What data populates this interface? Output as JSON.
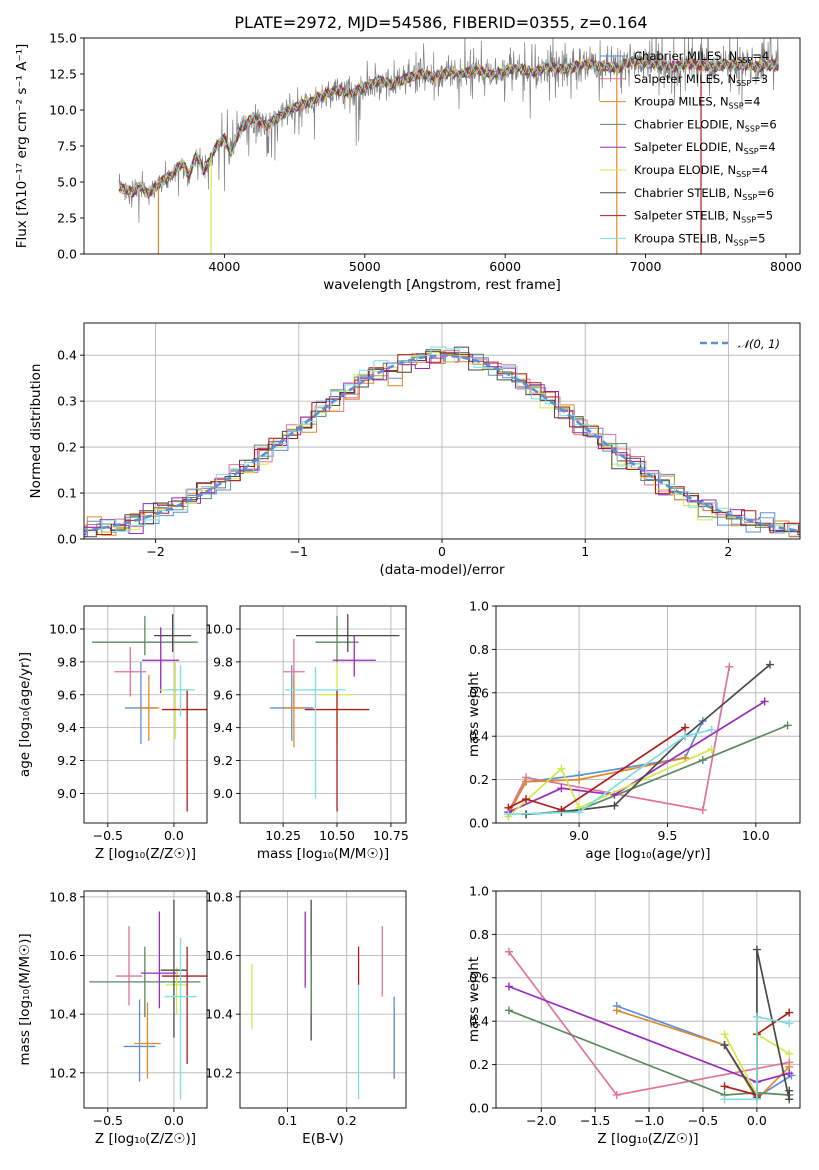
{
  "chart_data": [
    {
      "id": "spectrum",
      "type": "line",
      "title": "PLATE=2972, MJD=54586, FIBERID=0355, z=0.164",
      "xlabel": "wavelength [Angstrom, rest frame]",
      "ylabel": "Flux [fλ10⁻¹⁷ erg cm⁻² s⁻¹ A⁻¹]",
      "xlim": [
        3000,
        8100
      ],
      "ylim": [
        0,
        15
      ],
      "xticks": [
        4000,
        5000,
        6000,
        7000,
        8000
      ],
      "yticks": [
        0.0,
        2.5,
        5.0,
        7.5,
        10.0,
        12.5,
        15.0
      ],
      "ytick_labels": [
        "0.0",
        "2.5",
        "5.0",
        "7.5",
        "10.0",
        "12.5",
        "15.0"
      ],
      "legend_loc": "upper right",
      "data_series": {
        "name": "",
        "color": "#808080",
        "x": [
          3250,
          3300,
          3350,
          3400,
          3450,
          3500,
          3550,
          3600,
          3650,
          3700,
          3750,
          3800,
          3850,
          3900,
          3950,
          4000,
          4050,
          4100,
          4150,
          4200,
          4300,
          4400,
          4500,
          4600,
          4700,
          4800,
          4900,
          5000,
          5100,
          5200,
          5300,
          5400,
          5500,
          5600,
          5700,
          5800,
          5900,
          6000,
          6100,
          6200,
          6300,
          6400,
          6500,
          6600,
          6700,
          6800,
          6900,
          7000,
          7100,
          7200,
          7300,
          7400,
          7500,
          7600,
          7700,
          7800,
          7900
        ],
        "y": [
          4.6,
          4.5,
          4.3,
          4.7,
          4.2,
          4.6,
          5.0,
          5.3,
          5.8,
          6.3,
          5.5,
          6.9,
          5.8,
          6.6,
          7.6,
          8.1,
          7.0,
          8.4,
          9.0,
          9.5,
          8.9,
          9.6,
          10.2,
          10.6,
          11.0,
          11.4,
          11.1,
          11.6,
          12.0,
          11.8,
          12.2,
          12.5,
          12.3,
          12.6,
          12.5,
          12.8,
          12.4,
          12.7,
          12.9,
          12.6,
          13.0,
          12.8,
          13.0,
          13.2,
          13.0,
          12.9,
          13.4,
          13.3,
          13.1,
          13.0,
          13.2,
          13.1,
          13.0,
          13.2,
          13.1,
          13.0,
          13.1
        ]
      },
      "series": [
        {
          "name": "Chabrier MILES, N_SSP=4",
          "color": "#5b8fd8"
        },
        {
          "name": "Salpeter MILES, N_SSP=3",
          "color": "#e0739e"
        },
        {
          "name": "Kroupa MILES, N_SSP=4",
          "color": "#e08a2a"
        },
        {
          "name": "Chabrier ELODIE, N_SSP=6",
          "color": "#5a8a5e"
        },
        {
          "name": "Salpeter ELODIE, N_SSP=4",
          "color": "#9a2bbd"
        },
        {
          "name": "Kroupa ELODIE, N_SSP=4",
          "color": "#d4e84a"
        },
        {
          "name": "Chabrier STELIB, N_SSP=6",
          "color": "#4a4a4a"
        },
        {
          "name": "Salpeter STELIB, N_SSP=5",
          "color": "#b01c1c"
        },
        {
          "name": "Kroupa STELIB, N_SSP=5",
          "color": "#7fdde0"
        }
      ]
    },
    {
      "id": "residuals",
      "type": "line",
      "xlabel": "(data-model)/error",
      "ylabel": "Normed distribution",
      "xlim": [
        -2.5,
        2.5
      ],
      "ylim": [
        0,
        0.47
      ],
      "xticks": [
        -2,
        -1,
        0,
        1,
        2
      ],
      "xtick_labels": [
        "−2",
        "−1",
        "0",
        "1",
        "2"
      ],
      "yticks": [
        0.0,
        0.1,
        0.2,
        0.3,
        0.4
      ],
      "ytick_labels": [
        "0.0",
        "0.1",
        "0.2",
        "0.3",
        "0.4"
      ],
      "grid": true,
      "legend": "𝒩(0, 1)",
      "legend_loc": "upper right",
      "series": [
        {
          "name": "𝒩(0, 1)",
          "color": "#5b8fd8",
          "style": "dashed",
          "function": "normal_pdf",
          "mean": 0,
          "sigma": 1
        }
      ]
    },
    {
      "id": "age_vs_Z",
      "type": "scatter",
      "xlabel": "Z [log₁₀(Z/Z☉)]",
      "ylabel": "age  [log₁₀(age/yr)]",
      "xlim": [
        -0.68,
        0.25
      ],
      "ylim": [
        8.82,
        10.14
      ],
      "xticks": [
        -0.5,
        0.0
      ],
      "xtick_labels": [
        "−0.5",
        "0.0"
      ],
      "yticks": [
        9.0,
        9.2,
        9.4,
        9.6,
        9.8,
        10.0
      ],
      "ytick_labels": [
        "9.0",
        "9.2",
        "9.4",
        "9.6",
        "9.8",
        "10.0"
      ],
      "grid": true,
      "points": [
        {
          "color": "#5b8fd8",
          "x": -0.25,
          "y": 9.52,
          "xerr": 0.12,
          "yerr": [
            0.22,
            0.28
          ]
        },
        {
          "color": "#e0739e",
          "x": -0.33,
          "y": 9.74,
          "xerr": 0.12,
          "yerr": [
            0.15,
            0.15
          ]
        },
        {
          "color": "#e08a2a",
          "x": -0.19,
          "y": 9.52,
          "xerr": 0.08,
          "yerr": [
            0.2,
            0.2
          ]
        },
        {
          "color": "#5a8a5e",
          "x": -0.22,
          "y": 9.92,
          "xerr": 0.4,
          "yerr": [
            0.08,
            0.16
          ]
        },
        {
          "color": "#9a2bbd",
          "x": -0.1,
          "y": 9.81,
          "xerr": 0.14,
          "yerr": [
            0.2,
            0.2
          ]
        },
        {
          "color": "#d4e84a",
          "x": 0.01,
          "y": 9.63,
          "xerr": 0.12,
          "yerr": [
            0.3,
            0.17
          ]
        },
        {
          "color": "#4a4a4a",
          "x": -0.01,
          "y": 9.96,
          "xerr": 0.14,
          "yerr": [
            0.1,
            0.13
          ]
        },
        {
          "color": "#b01c1c",
          "x": 0.1,
          "y": 9.51,
          "xerr": 0.19,
          "yerr": [
            0.62,
            0.12
          ]
        },
        {
          "color": "#7fdde0",
          "x": 0.05,
          "y": 9.63,
          "xerr": 0.11,
          "yerr": [
            0.16,
            0.15
          ]
        }
      ]
    },
    {
      "id": "age_vs_mass",
      "type": "scatter",
      "xlabel": "mass [log₁₀(M/M☉)]",
      "xlim": [
        10.05,
        10.82
      ],
      "ylim": [
        8.82,
        10.14
      ],
      "xticks": [
        10.25,
        10.5,
        10.75
      ],
      "xtick_labels": [
        "10.25",
        "10.50",
        "10.75"
      ],
      "yticks": [
        9.0,
        9.2,
        9.4,
        9.6,
        9.8,
        10.0
      ],
      "ytick_labels": [
        "9.0",
        "9.2",
        "9.4",
        "9.6",
        "9.8",
        "10.0"
      ],
      "grid": true,
      "points": [
        {
          "color": "#5b8fd8",
          "x": 10.29,
          "y": 9.52,
          "xerr": 0.1,
          "yerr": [
            0.2,
            0.26
          ]
        },
        {
          "color": "#e0739e",
          "x": 10.3,
          "y": 9.74,
          "xerr": 0.05,
          "yerr": [
            0.2,
            0.2
          ]
        },
        {
          "color": "#e08a2a",
          "x": 10.3,
          "y": 9.52,
          "xerr": 0.05,
          "yerr": [
            0.24,
            0.2
          ]
        },
        {
          "color": "#5a8a5e",
          "x": 10.5,
          "y": 9.92,
          "xerr": 0.1,
          "yerr": [
            0.12,
            0.16
          ]
        },
        {
          "color": "#9a2bbd",
          "x": 10.58,
          "y": 9.81,
          "xerr": 0.1,
          "yerr": [
            0.1,
            0.15
          ]
        },
        {
          "color": "#d4e84a",
          "x": 10.5,
          "y": 9.6,
          "xerr": 0.08,
          "yerr": [
            0.3,
            0.19
          ]
        },
        {
          "color": "#4a4a4a",
          "x": 10.55,
          "y": 9.96,
          "xerr": 0.24,
          "yerr": [
            0.1,
            0.13
          ]
        },
        {
          "color": "#b01c1c",
          "x": 10.5,
          "y": 9.51,
          "xerr": 0.15,
          "yerr": [
            0.62,
            0.12
          ]
        },
        {
          "color": "#7fdde0",
          "x": 10.4,
          "y": 9.63,
          "xerr": 0.14,
          "yerr": [
            0.66,
            0.14
          ]
        }
      ]
    },
    {
      "id": "massweight_vs_age",
      "type": "line",
      "xlabel": "age  [log₁₀(age/yr)]",
      "ylabel": "mass weight",
      "xlim": [
        8.53,
        10.25
      ],
      "ylim": [
        0,
        1
      ],
      "xticks": [
        9.0,
        9.5,
        10.0
      ],
      "xtick_labels": [
        "9.0",
        "9.5",
        "10.0"
      ],
      "yticks": [
        0.0,
        0.2,
        0.4,
        0.6,
        0.8,
        1.0
      ],
      "ytick_labels": [
        "0.0",
        "0.2",
        "0.4",
        "0.6",
        "0.8",
        "1.0"
      ],
      "grid": true,
      "series": [
        {
          "name": "Chabrier MILES",
          "color": "#5b8fd8",
          "x": [
            8.6,
            8.7,
            9.0,
            9.6,
            9.7
          ],
          "y": [
            0.05,
            0.19,
            0.22,
            0.3,
            0.47
          ]
        },
        {
          "name": "Salpeter MILES",
          "color": "#e0739e",
          "x": [
            8.6,
            8.7,
            9.7,
            9.85
          ],
          "y": [
            0.05,
            0.21,
            0.06,
            0.72
          ]
        },
        {
          "name": "Kroupa MILES",
          "color": "#e08a2a",
          "x": [
            8.6,
            8.7,
            9.0,
            9.6
          ],
          "y": [
            0.04,
            0.19,
            0.2,
            0.3
          ]
        },
        {
          "name": "Chabrier ELODIE",
          "color": "#5a8a5e",
          "x": [
            8.7,
            9.0,
            9.7,
            10.18
          ],
          "y": [
            0.04,
            0.06,
            0.29,
            0.45
          ]
        },
        {
          "name": "Salpeter ELODIE",
          "color": "#9a2bbd",
          "x": [
            8.6,
            8.9,
            9.2,
            10.05
          ],
          "y": [
            0.05,
            0.16,
            0.13,
            0.56
          ]
        },
        {
          "name": "Kroupa ELODIE",
          "color": "#d4e84a",
          "x": [
            8.6,
            8.9,
            9.0,
            9.75
          ],
          "y": [
            0.03,
            0.25,
            0.07,
            0.34
          ]
        },
        {
          "name": "Chabrier STELIB",
          "color": "#4a4a4a",
          "x": [
            8.7,
            8.9,
            9.2,
            9.6,
            10.08
          ],
          "y": [
            0.04,
            0.05,
            0.08,
            0.4,
            0.73
          ]
        },
        {
          "name": "Salpeter STELIB",
          "color": "#b01c1c",
          "x": [
            8.6,
            8.7,
            8.9,
            9.6
          ],
          "y": [
            0.07,
            0.11,
            0.06,
            0.44
          ]
        },
        {
          "name": "Kroupa STELIB",
          "color": "#7fdde0",
          "x": [
            8.6,
            9.0,
            9.6,
            9.75
          ],
          "y": [
            0.04,
            0.05,
            0.4,
            0.43
          ]
        }
      ]
    },
    {
      "id": "mass_vs_Z",
      "type": "scatter",
      "xlabel": "Z [log₁₀(Z/Z☉)]",
      "ylabel": "mass [log₁₀(M/M☉)]",
      "xlim": [
        -0.68,
        0.25
      ],
      "ylim": [
        10.08,
        10.82
      ],
      "xticks": [
        -0.5,
        0.0
      ],
      "xtick_labels": [
        "−0.5",
        "0.0"
      ],
      "yticks": [
        10.2,
        10.4,
        10.6,
        10.8
      ],
      "ytick_labels": [
        "10.2",
        "10.4",
        "10.6",
        "10.8"
      ],
      "grid": true,
      "points": [
        {
          "color": "#5b8fd8",
          "x": -0.26,
          "y": 10.29,
          "xerr": 0.12,
          "yerr": [
            0.12,
            0.16
          ]
        },
        {
          "color": "#e0739e",
          "x": -0.34,
          "y": 10.53,
          "xerr": 0.1,
          "yerr": [
            0.1,
            0.17
          ]
        },
        {
          "color": "#e08a2a",
          "x": -0.2,
          "y": 10.3,
          "xerr": 0.1,
          "yerr": [
            0.12,
            0.14
          ]
        },
        {
          "color": "#5a8a5e",
          "x": -0.22,
          "y": 10.51,
          "xerr": 0.42,
          "yerr": [
            0.12,
            0.12
          ]
        },
        {
          "color": "#9a2bbd",
          "x": -0.11,
          "y": 10.54,
          "xerr": 0.14,
          "yerr": [
            0.12,
            0.21
          ]
        },
        {
          "color": "#d4e84a",
          "x": 0.02,
          "y": 10.5,
          "xerr": 0.08,
          "yerr": [
            0.1,
            0.06
          ]
        },
        {
          "color": "#4a4a4a",
          "x": 0.0,
          "y": 10.55,
          "xerr": 0.1,
          "yerr": [
            0.23,
            0.24
          ]
        },
        {
          "color": "#b01c1c",
          "x": 0.1,
          "y": 10.53,
          "xerr": 0.19,
          "yerr": [
            0.3,
            0.1
          ]
        },
        {
          "color": "#7fdde0",
          "x": 0.05,
          "y": 10.46,
          "xerr": 0.12,
          "yerr": [
            0.35,
            0.2
          ]
        }
      ]
    },
    {
      "id": "mass_vs_ebv",
      "type": "scatter",
      "xlabel": "E(B-V)",
      "xlim": [
        0.02,
        0.3
      ],
      "ylim": [
        10.08,
        10.82
      ],
      "xticks": [
        0.1,
        0.2
      ],
      "xtick_labels": [
        "0.1",
        "0.2"
      ],
      "yticks": [
        10.2,
        10.4,
        10.6,
        10.8
      ],
      "ytick_labels": [
        "10.2",
        "10.4",
        "10.6",
        "10.8"
      ],
      "grid": true,
      "points": [
        {
          "color": "#d4e84a",
          "x": 0.04,
          "y": 10.46,
          "xerr": 0,
          "yerr": [
            0.11,
            0.11
          ]
        },
        {
          "color": "#9a2bbd",
          "x": 0.13,
          "y": 10.62,
          "xerr": 0,
          "yerr": [
            0.13,
            0.13
          ]
        },
        {
          "color": "#4a4a4a",
          "x": 0.14,
          "y": 10.55,
          "xerr": 0,
          "yerr": [
            0.24,
            0.24
          ]
        },
        {
          "color": "#5a8a5e",
          "x": 0.14,
          "y": 10.5,
          "xerr": 0,
          "yerr": [
            0.1,
            0.1
          ]
        },
        {
          "color": "#7fdde0",
          "x": 0.22,
          "y": 10.3,
          "xerr": 0,
          "yerr": [
            0.19,
            0.2
          ]
        },
        {
          "color": "#b01c1c",
          "x": 0.22,
          "y": 10.56,
          "xerr": 0,
          "yerr": [
            0.06,
            0.07
          ]
        },
        {
          "color": "#e0739e",
          "x": 0.26,
          "y": 10.58,
          "xerr": 0,
          "yerr": [
            0.12,
            0.12
          ]
        },
        {
          "color": "#e08a2a",
          "x": 0.28,
          "y": 10.3,
          "xerr": 0,
          "yerr": [
            0.12,
            0.12
          ]
        },
        {
          "color": "#5b8fd8",
          "x": 0.28,
          "y": 10.32,
          "xerr": 0,
          "yerr": [
            0.14,
            0.14
          ]
        }
      ]
    },
    {
      "id": "massweight_vs_Z",
      "type": "line",
      "xlabel": "Z [log₁₀(Z/Z☉)]",
      "ylabel": "mass weight",
      "xlim": [
        -2.42,
        0.4
      ],
      "ylim": [
        0,
        1
      ],
      "xticks": [
        -2.0,
        -1.5,
        -1.0,
        -0.5,
        0.0
      ],
      "xtick_labels": [
        "−2.0",
        "−1.5",
        "−1.0",
        "−0.5",
        "0.0"
      ],
      "yticks": [
        0.0,
        0.2,
        0.4,
        0.6,
        0.8,
        1.0
      ],
      "ytick_labels": [
        "0.0",
        "0.2",
        "0.4",
        "0.6",
        "0.8",
        "1.0"
      ],
      "grid": true,
      "series": [
        {
          "name": "Chabrier MILES",
          "color": "#5b8fd8",
          "x": [
            -1.3,
            -0.3,
            0.0,
            0.32
          ],
          "y": [
            0.47,
            0.29,
            0.05,
            0.15
          ]
        },
        {
          "name": "Salpeter MILES",
          "color": "#e0739e",
          "x": [
            -2.3,
            -1.3,
            0.3
          ],
          "y": [
            0.72,
            0.06,
            0.21
          ]
        },
        {
          "name": "Kroupa MILES",
          "color": "#e08a2a",
          "x": [
            -1.3,
            -0.3,
            0.0,
            0.3
          ],
          "y": [
            0.45,
            0.29,
            0.04,
            0.19
          ]
        },
        {
          "name": "Chabrier ELODIE",
          "color": "#5a8a5e",
          "x": [
            -2.3,
            -0.3,
            0.0,
            0.3
          ],
          "y": [
            0.45,
            0.06,
            0.07,
            0.06
          ]
        },
        {
          "name": "Salpeter ELODIE",
          "color": "#9a2bbd",
          "x": [
            -2.3,
            0.0,
            0.3
          ],
          "y": [
            0.56,
            0.12,
            0.16
          ]
        },
        {
          "name": "Kroupa ELODIE",
          "color": "#d4e84a",
          "x": [
            -0.3,
            0.0,
            0.0,
            0.3
          ],
          "y": [
            0.34,
            0.06,
            0.34,
            0.25
          ]
        },
        {
          "name": "Chabrier STELIB",
          "color": "#4a4a4a",
          "x": [
            -0.3,
            0.0,
            0.0,
            0.3,
            0.3
          ],
          "y": [
            0.29,
            0.05,
            0.73,
            0.04,
            0.08
          ]
        },
        {
          "name": "Salpeter STELIB",
          "color": "#b01c1c",
          "x": [
            -0.3,
            0.0,
            0.0,
            0.3
          ],
          "y": [
            0.1,
            0.06,
            0.34,
            0.44
          ]
        },
        {
          "name": "Kroupa STELIB",
          "color": "#7fdde0",
          "x": [
            -0.3,
            0.0,
            0.0,
            0.3
          ],
          "y": [
            0.04,
            0.04,
            0.42,
            0.39
          ]
        }
      ]
    }
  ]
}
